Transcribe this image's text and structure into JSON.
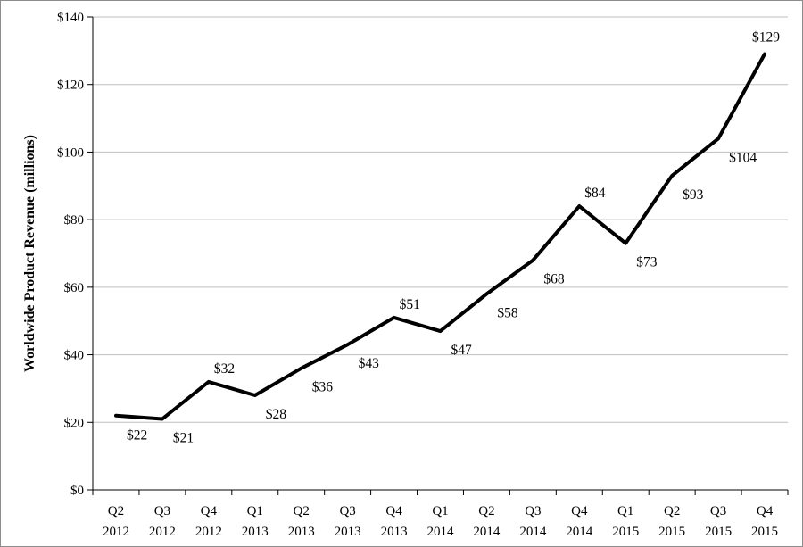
{
  "chart_data": {
    "type": "line",
    "title": "",
    "xlabel": "",
    "ylabel": "Worldwide Product Revenue (millions)",
    "ylim": [
      0,
      140
    ],
    "yticks": [
      0,
      20,
      40,
      60,
      80,
      100,
      120,
      140
    ],
    "ytick_labels": [
      "$0",
      "$20",
      "$40",
      "$60",
      "$80",
      "$100",
      "$120",
      "$140"
    ],
    "grid": true,
    "legend": "none",
    "line_color": "#000000",
    "categories": [
      [
        "Q2",
        "2012"
      ],
      [
        "Q3",
        "2012"
      ],
      [
        "Q4",
        "2012"
      ],
      [
        "Q1",
        "2013"
      ],
      [
        "Q2",
        "2013"
      ],
      [
        "Q3",
        "2013"
      ],
      [
        "Q4",
        "2013"
      ],
      [
        "Q1",
        "2014"
      ],
      [
        "Q2",
        "2014"
      ],
      [
        "Q3",
        "2014"
      ],
      [
        "Q4",
        "2014"
      ],
      [
        "Q1",
        "2015"
      ],
      [
        "Q2",
        "2015"
      ],
      [
        "Q3",
        "2015"
      ],
      [
        "Q4",
        "2015"
      ]
    ],
    "values": [
      22,
      21,
      32,
      28,
      36,
      43,
      51,
      47,
      58,
      68,
      84,
      73,
      93,
      104,
      129
    ],
    "data_labels": [
      "$22",
      "$21",
      "$32",
      "$28",
      "$36",
      "$43",
      "$51",
      "$47",
      "$58",
      "$68",
      "$84",
      "$73",
      "$93",
      "$104",
      "$129"
    ]
  }
}
